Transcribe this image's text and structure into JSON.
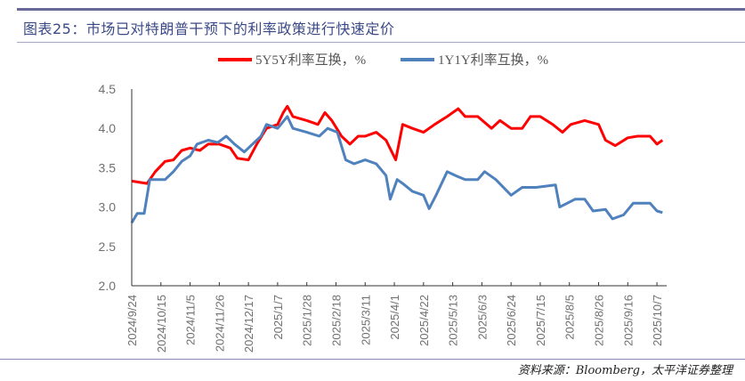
{
  "header": {
    "title": "图表25：市场已对特朗普干预下的利率政策进行快速定价"
  },
  "footer": {
    "source": "资料来源：Bloomberg，太平洋证券整理"
  },
  "chart_data": {
    "type": "line",
    "title": "图表25：市场已对特朗普干预下的利率政策进行快速定价",
    "xlabel": "",
    "ylabel": "",
    "x_unit": "days since 2024/9/24",
    "xlim": [
      0,
      385
    ],
    "ylim": [
      2.0,
      4.5
    ],
    "yticks": [
      "2.0",
      "2.5",
      "3.0",
      "3.5",
      "4.0",
      "4.5"
    ],
    "ytick_values": [
      2.0,
      2.5,
      3.0,
      3.5,
      4.0,
      4.5
    ],
    "xtick_labels": [
      "2024/9/24",
      "2024/10/15",
      "2024/11/5",
      "2024/11/26",
      "2024/12/17",
      "2025/1/7",
      "2025/1/28",
      "2025/2/18",
      "2025/3/11",
      "2025/4/1",
      "2025/4/22",
      "2025/5/13",
      "2025/6/3",
      "2025/6/24",
      "2025/7/15",
      "2025/8/5",
      "2025/8/26",
      "2025/9/16",
      "2025/10/7"
    ],
    "xtick_step_days": 21,
    "grid": false,
    "legend_position": "top-center",
    "series": [
      {
        "name": "5Y5Y利率互换，%",
        "color": "#ff0000",
        "x": [
          0,
          11,
          17,
          24,
          30,
          36,
          42,
          49,
          55,
          63,
          71,
          76,
          84,
          90,
          97,
          105,
          109,
          112,
          116,
          126,
          134,
          139,
          144,
          151,
          157,
          163,
          168,
          176,
          183,
          190,
          195,
          202,
          210,
          218,
          227,
          235,
          240,
          249,
          259,
          265,
          273,
          281,
          287,
          294,
          303,
          310,
          316,
          326,
          336,
          341,
          348,
          357,
          364,
          373,
          378,
          382
        ],
        "values": [
          3.33,
          3.3,
          3.45,
          3.58,
          3.6,
          3.72,
          3.75,
          3.72,
          3.8,
          3.8,
          3.75,
          3.62,
          3.6,
          3.8,
          4.0,
          4.05,
          4.2,
          4.28,
          4.15,
          4.1,
          4.05,
          4.2,
          4.1,
          3.9,
          3.8,
          3.9,
          3.9,
          3.95,
          3.85,
          3.6,
          4.05,
          4.0,
          3.95,
          4.05,
          4.15,
          4.25,
          4.15,
          4.15,
          4.0,
          4.1,
          4.0,
          4.0,
          4.15,
          4.15,
          4.05,
          3.95,
          4.05,
          4.1,
          4.05,
          3.85,
          3.78,
          3.88,
          3.9,
          3.9,
          3.8,
          3.85
        ]
      },
      {
        "name": "1Y1Y利率互换，%",
        "color": "#4f81bd",
        "x": [
          0,
          4,
          9,
          13,
          17,
          24,
          30,
          36,
          42,
          47,
          55,
          62,
          68,
          74,
          81,
          87,
          93,
          97,
          105,
          112,
          116,
          126,
          135,
          141,
          148,
          154,
          160,
          168,
          176,
          183,
          186,
          191,
          195,
          202,
          210,
          214,
          219,
          227,
          233,
          240,
          249,
          254,
          262,
          273,
          281,
          291,
          305,
          308,
          319,
          326,
          332,
          341,
          346,
          354,
          361,
          367,
          373,
          378,
          382
        ],
        "values": [
          2.8,
          2.92,
          2.92,
          3.35,
          3.35,
          3.35,
          3.45,
          3.58,
          3.65,
          3.8,
          3.85,
          3.82,
          3.9,
          3.8,
          3.7,
          3.8,
          3.9,
          4.05,
          4.0,
          4.15,
          4.0,
          3.95,
          3.9,
          4.0,
          3.95,
          3.6,
          3.55,
          3.6,
          3.55,
          3.4,
          3.1,
          3.35,
          3.3,
          3.2,
          3.15,
          2.98,
          3.15,
          3.45,
          3.4,
          3.35,
          3.35,
          3.45,
          3.35,
          3.15,
          3.25,
          3.25,
          3.28,
          3.0,
          3.1,
          3.1,
          2.95,
          2.97,
          2.85,
          2.9,
          3.05,
          3.05,
          3.05,
          2.95,
          2.93
        ]
      }
    ]
  }
}
